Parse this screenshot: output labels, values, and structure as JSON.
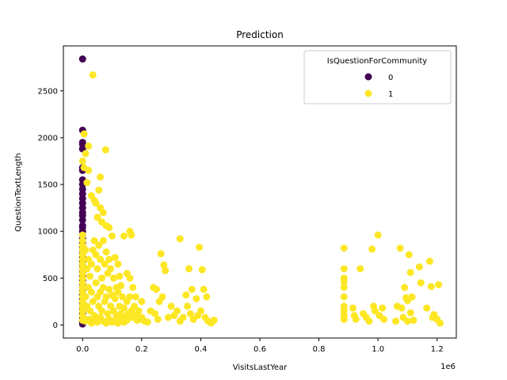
{
  "chart_data": {
    "type": "scatter",
    "title": "Prediction",
    "xlabel": "VisitsLastYear",
    "ylabel": "QuestionTextLength",
    "x_scale_label": "1e6",
    "xlim": [
      -65000,
      1265000
    ],
    "ylim": [
      -140,
      2980
    ],
    "x_ticks": [
      0,
      200000,
      400000,
      600000,
      800000,
      1000000,
      1200000
    ],
    "x_tick_labels": [
      "0.0",
      "0.2",
      "0.4",
      "0.6",
      "0.8",
      "1.0",
      "1.2"
    ],
    "y_ticks": [
      0,
      500,
      1000,
      1500,
      2000,
      2500
    ],
    "y_tick_labels": [
      "0",
      "500",
      "1000",
      "1500",
      "2000",
      "2500"
    ],
    "grid": false,
    "legend": {
      "title": "IsQuestionForCommunity",
      "placement": "top-right",
      "entries": [
        {
          "label": "0",
          "color": "#440154"
        },
        {
          "label": "1",
          "color": "#fde725"
        }
      ]
    },
    "series": [
      {
        "name": "0",
        "color": "#440154",
        "points": [
          [
            0,
            2840
          ],
          [
            0,
            2080
          ],
          [
            0,
            1950
          ],
          [
            0,
            1930
          ],
          [
            0,
            1880
          ],
          [
            0,
            1680
          ],
          [
            0,
            1650
          ],
          [
            0,
            1550
          ],
          [
            0,
            1500
          ],
          [
            0,
            1450
          ],
          [
            0,
            1400
          ],
          [
            0,
            1350
          ],
          [
            0,
            1300
          ],
          [
            0,
            1250
          ],
          [
            0,
            1200
          ],
          [
            0,
            1170
          ],
          [
            0,
            1120
          ],
          [
            0,
            1060
          ],
          [
            0,
            1040
          ],
          [
            0,
            1000
          ],
          [
            0,
            960
          ],
          [
            0,
            920
          ],
          [
            0,
            880
          ],
          [
            0,
            840
          ],
          [
            0,
            800
          ],
          [
            0,
            760
          ],
          [
            0,
            720
          ],
          [
            0,
            680
          ],
          [
            0,
            640
          ],
          [
            0,
            600
          ],
          [
            0,
            560
          ],
          [
            0,
            520
          ],
          [
            0,
            480
          ],
          [
            0,
            440
          ],
          [
            0,
            400
          ],
          [
            0,
            360
          ],
          [
            0,
            320
          ],
          [
            0,
            280
          ],
          [
            0,
            240
          ],
          [
            0,
            200
          ],
          [
            0,
            160
          ],
          [
            0,
            120
          ],
          [
            0,
            80
          ],
          [
            0,
            40
          ],
          [
            0,
            10
          ]
        ]
      },
      {
        "name": "1",
        "color": "#fde725",
        "points": [
          [
            35000,
            2670
          ],
          [
            5000,
            2040
          ],
          [
            20000,
            1910
          ],
          [
            10000,
            1830
          ],
          [
            78000,
            1870
          ],
          [
            0,
            1750
          ],
          [
            5000,
            1680
          ],
          [
            20000,
            1650
          ],
          [
            60000,
            1580
          ],
          [
            15000,
            1520
          ],
          [
            30000,
            1380
          ],
          [
            40000,
            1330
          ],
          [
            55000,
            1440
          ],
          [
            45000,
            1300
          ],
          [
            60000,
            1250
          ],
          [
            70000,
            1200
          ],
          [
            50000,
            1150
          ],
          [
            65000,
            1100
          ],
          [
            80000,
            1060
          ],
          [
            90000,
            1040
          ],
          [
            0,
            960
          ],
          [
            0,
            900
          ],
          [
            0,
            850
          ],
          [
            0,
            800
          ],
          [
            0,
            750
          ],
          [
            0,
            700
          ],
          [
            0,
            650
          ],
          [
            0,
            600
          ],
          [
            0,
            550
          ],
          [
            0,
            500
          ],
          [
            0,
            450
          ],
          [
            0,
            400
          ],
          [
            0,
            350
          ],
          [
            0,
            300
          ],
          [
            0,
            250
          ],
          [
            0,
            200
          ],
          [
            0,
            150
          ],
          [
            0,
            100
          ],
          [
            0,
            50
          ],
          [
            10000,
            800
          ],
          [
            15000,
            600
          ],
          [
            20000,
            700
          ],
          [
            25000,
            520
          ],
          [
            30000,
            650
          ],
          [
            35000,
            800
          ],
          [
            40000,
            900
          ],
          [
            45000,
            750
          ],
          [
            50000,
            600
          ],
          [
            55000,
            850
          ],
          [
            60000,
            700
          ],
          [
            65000,
            500
          ],
          [
            70000,
            900
          ],
          [
            75000,
            650
          ],
          [
            80000,
            780
          ],
          [
            85000,
            550
          ],
          [
            90000,
            700
          ],
          [
            95000,
            600
          ],
          [
            100000,
            950
          ],
          [
            105000,
            500
          ],
          [
            110000,
            720
          ],
          [
            115000,
            400
          ],
          [
            120000,
            650
          ],
          [
            125000,
            520
          ],
          [
            130000,
            420
          ],
          [
            140000,
            950
          ],
          [
            150000,
            550
          ],
          [
            160000,
            1000
          ],
          [
            165000,
            960
          ],
          [
            170000,
            400
          ],
          [
            180000,
            300
          ],
          [
            200000,
            250
          ],
          [
            160000,
            500
          ],
          [
            10000,
            300
          ],
          [
            15000,
            200
          ],
          [
            20000,
            400
          ],
          [
            25000,
            150
          ],
          [
            30000,
            350
          ],
          [
            35000,
            250
          ],
          [
            40000,
            100
          ],
          [
            45000,
            450
          ],
          [
            50000,
            300
          ],
          [
            55000,
            200
          ],
          [
            60000,
            350
          ],
          [
            65000,
            150
          ],
          [
            70000,
            400
          ],
          [
            75000,
            250
          ],
          [
            80000,
            300
          ],
          [
            85000,
            120
          ],
          [
            90000,
            380
          ],
          [
            95000,
            200
          ],
          [
            100000,
            320
          ],
          [
            105000,
            150
          ],
          [
            110000,
            280
          ],
          [
            115000,
            100
          ],
          [
            120000,
            350
          ],
          [
            125000,
            200
          ],
          [
            130000,
            120
          ],
          [
            135000,
            300
          ],
          [
            140000,
            180
          ],
          [
            145000,
            80
          ],
          [
            150000,
            250
          ],
          [
            155000,
            120
          ],
          [
            160000,
            300
          ],
          [
            165000,
            150
          ],
          [
            170000,
            80
          ],
          [
            175000,
            200
          ],
          [
            180000,
            100
          ],
          [
            185000,
            50
          ],
          [
            190000,
            150
          ],
          [
            195000,
            60
          ],
          [
            200000,
            80
          ],
          [
            210000,
            40
          ],
          [
            10000,
            40
          ],
          [
            20000,
            60
          ],
          [
            30000,
            20
          ],
          [
            40000,
            70
          ],
          [
            50000,
            30
          ],
          [
            60000,
            80
          ],
          [
            70000,
            40
          ],
          [
            80000,
            20
          ],
          [
            90000,
            60
          ],
          [
            100000,
            30
          ],
          [
            110000,
            50
          ],
          [
            120000,
            20
          ],
          [
            130000,
            60
          ],
          [
            140000,
            30
          ],
          [
            150000,
            50
          ],
          [
            220000,
            30
          ],
          [
            230000,
            150
          ],
          [
            240000,
            400
          ],
          [
            250000,
            380
          ],
          [
            260000,
            250
          ],
          [
            270000,
            300
          ],
          [
            275000,
            640
          ],
          [
            280000,
            580
          ],
          [
            265000,
            760
          ],
          [
            330000,
            920
          ],
          [
            350000,
            320
          ],
          [
            360000,
            600
          ],
          [
            370000,
            380
          ],
          [
            385000,
            280
          ],
          [
            395000,
            830
          ],
          [
            405000,
            590
          ],
          [
            410000,
            380
          ],
          [
            420000,
            300
          ],
          [
            300000,
            200
          ],
          [
            310000,
            100
          ],
          [
            320000,
            150
          ],
          [
            340000,
            80
          ],
          [
            355000,
            200
          ],
          [
            365000,
            120
          ],
          [
            375000,
            60
          ],
          [
            390000,
            100
          ],
          [
            400000,
            150
          ],
          [
            415000,
            80
          ],
          [
            425000,
            40
          ],
          [
            435000,
            20
          ],
          [
            445000,
            50
          ],
          [
            330000,
            40
          ],
          [
            290000,
            80
          ],
          [
            255000,
            60
          ],
          [
            245000,
            120
          ],
          [
            885000,
            820
          ],
          [
            885000,
            600
          ],
          [
            885000,
            500
          ],
          [
            885000,
            460
          ],
          [
            885000,
            400
          ],
          [
            885000,
            300
          ],
          [
            885000,
            200
          ],
          [
            885000,
            150
          ],
          [
            885000,
            100
          ],
          [
            885000,
            60
          ],
          [
            915000,
            180
          ],
          [
            920000,
            100
          ],
          [
            925000,
            60
          ],
          [
            940000,
            600
          ],
          [
            950000,
            120
          ],
          [
            960000,
            80
          ],
          [
            970000,
            40
          ],
          [
            980000,
            810
          ],
          [
            985000,
            200
          ],
          [
            990000,
            150
          ],
          [
            1000000,
            960
          ],
          [
            1005000,
            100
          ],
          [
            1015000,
            180
          ],
          [
            1020000,
            60
          ],
          [
            1060000,
            40
          ],
          [
            1065000,
            200
          ],
          [
            1075000,
            820
          ],
          [
            1080000,
            180
          ],
          [
            1085000,
            80
          ],
          [
            1090000,
            400
          ],
          [
            1095000,
            290
          ],
          [
            1100000,
            260
          ],
          [
            1105000,
            750
          ],
          [
            1110000,
            560
          ],
          [
            1115000,
            300
          ],
          [
            1110000,
            130
          ],
          [
            1100000,
            40
          ],
          [
            1120000,
            50
          ],
          [
            1140000,
            620
          ],
          [
            1145000,
            450
          ],
          [
            1165000,
            180
          ],
          [
            1175000,
            680
          ],
          [
            1180000,
            410
          ],
          [
            1190000,
            110
          ],
          [
            1200000,
            60
          ],
          [
            1205000,
            430
          ],
          [
            1210000,
            20
          ],
          [
            1185000,
            80
          ]
        ]
      }
    ]
  }
}
